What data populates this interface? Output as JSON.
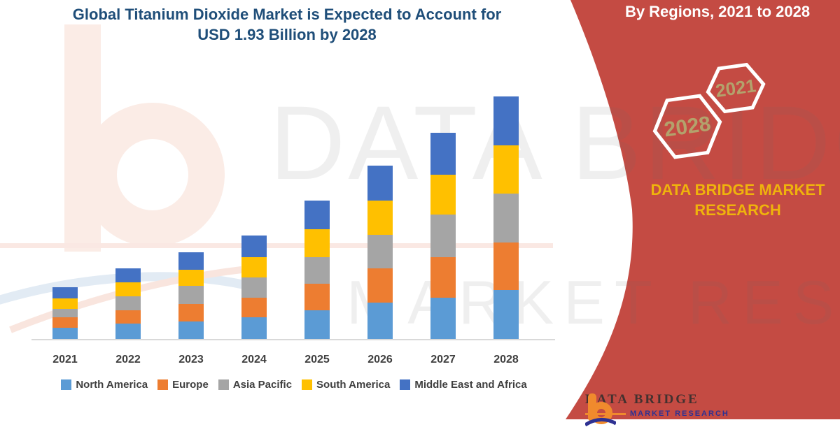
{
  "title": {
    "line1": "Global Titanium Dioxide Market is Expected to Account for",
    "line2": "USD 1.93 Billion by 2028"
  },
  "banner": {
    "text": "By Regions, 2021 to 2028"
  },
  "badges": {
    "hex_left": "2028",
    "hex_right": "2021"
  },
  "brand": {
    "name": "DATA BRIDGE MARKET RESEARCH"
  },
  "watermark": {
    "line1": "DATA BRIDGE",
    "line2": "MARKET RESEARCH"
  },
  "footer_logo": {
    "title": "DATA BRIDGE",
    "subtitle": "MARKET RESEARCH"
  },
  "colors": {
    "red": "#C44B43",
    "title_blue": "#1F4E79",
    "banner_text": "#FFFFFF",
    "hex_year": "#B3A26C",
    "brand_yellow": "#EFB30C",
    "watermark_gray": "#6E6E6E",
    "axis_text": "#404040",
    "legend_text": "#3F3F3F",
    "axis_line": "#D9D9D9",
    "footer_text": "#43312F",
    "footer_navy": "#2E3192",
    "footer_orange": "#F08A2D",
    "pale_pink": "#FBECE6",
    "pale_blue": "#E2EBF4"
  },
  "chart_data": {
    "type": "bar",
    "stacked": true,
    "title": "Global Titanium Dioxide Market is Expected to Account for USD 1.93 Billion by 2028",
    "subtitle": "By Regions, 2021 to 2028",
    "unit": "USD Billion",
    "xlabel": "",
    "ylabel": "",
    "ylim": [
      0,
      1.93
    ],
    "grid": false,
    "y_axis_visible": false,
    "legend_position": "bottom",
    "categories": [
      "2021",
      "2022",
      "2023",
      "2024",
      "2025",
      "2026",
      "2027",
      "2028"
    ],
    "series": [
      {
        "name": "North America",
        "color": "#5B9BD5",
        "values": [
          0.09,
          0.12,
          0.14,
          0.17,
          0.23,
          0.29,
          0.33,
          0.39
        ]
      },
      {
        "name": "Europe",
        "color": "#ED7D31",
        "values": [
          0.08,
          0.11,
          0.14,
          0.16,
          0.21,
          0.27,
          0.32,
          0.38
        ]
      },
      {
        "name": "Asia Pacific",
        "color": "#A5A5A5",
        "values": [
          0.07,
          0.11,
          0.14,
          0.16,
          0.21,
          0.27,
          0.34,
          0.39
        ]
      },
      {
        "name": "South America",
        "color": "#FFC000",
        "values": [
          0.08,
          0.11,
          0.13,
          0.16,
          0.22,
          0.27,
          0.32,
          0.38
        ]
      },
      {
        "name": "Middle East and Africa",
        "color": "#4472C4",
        "values": [
          0.09,
          0.11,
          0.14,
          0.17,
          0.23,
          0.28,
          0.33,
          0.39
        ]
      }
    ],
    "totals": [
      0.41,
      0.56,
      0.69,
      0.82,
      1.1,
      1.38,
      1.64,
      1.93
    ]
  }
}
